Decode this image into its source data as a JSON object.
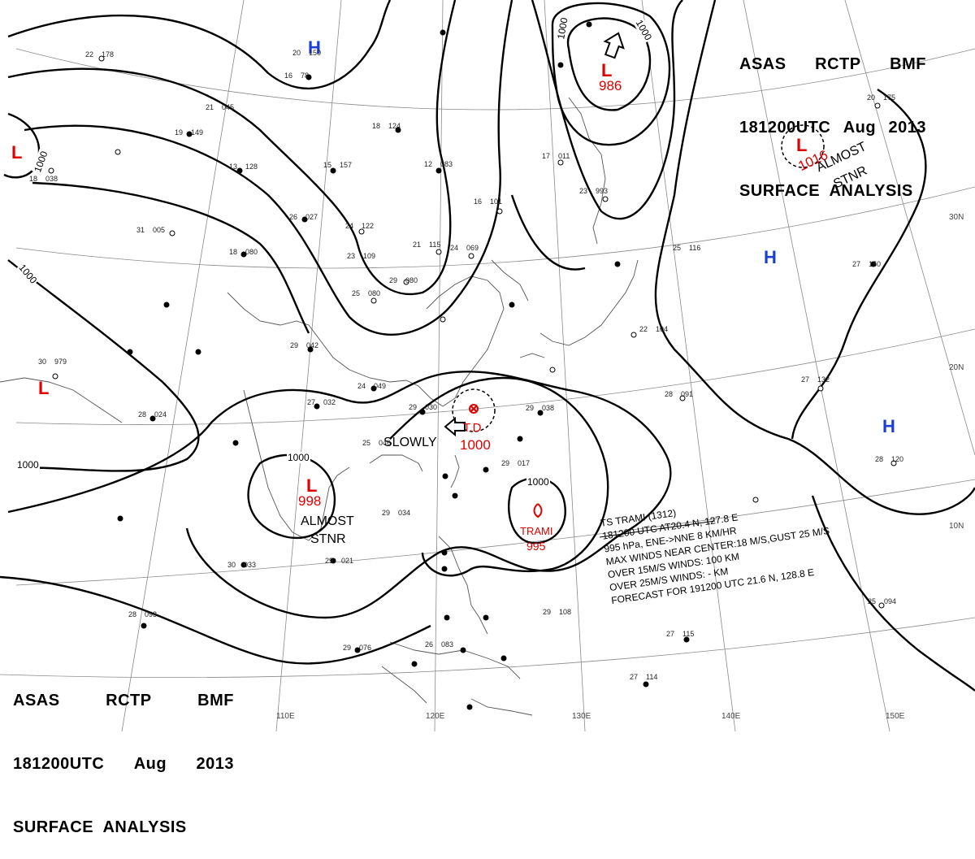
{
  "header": {
    "agency_line": [
      "ASAS",
      "RCTP",
      "BMF"
    ],
    "time_line": [
      "181200UTC",
      "Aug",
      "2013"
    ],
    "product": "SURFACE  ANALYSIS"
  },
  "lat_labels": [
    "30N",
    "20N",
    "10N"
  ],
  "lon_labels": [
    "110E",
    "120E",
    "130E",
    "140E",
    "150E"
  ],
  "isobar_label": "1000",
  "pressure_systems": {
    "low_ne": {
      "symbol": "L",
      "pressure": "986"
    },
    "low_e": {
      "symbol": "L",
      "pressure": "1016",
      "note1": "ALMOST",
      "note2": "STNR"
    },
    "low_w": {
      "symbol": "L"
    },
    "low_nw": {
      "symbol": "L"
    },
    "low_scs": {
      "symbol": "L",
      "pressure": "998",
      "note1": "ALMOST",
      "note2": "STNR"
    },
    "td": {
      "label": "T.D",
      "pressure": "1000",
      "motion": "SLOWLY"
    },
    "trami": {
      "name": "TRAMI",
      "pressure": "995"
    },
    "high_n": {
      "symbol": "H"
    },
    "high_e": {
      "symbol": "H"
    },
    "high_se": {
      "symbol": "H"
    }
  },
  "storm_info": {
    "line1": "TS  TRAMI  (1312)",
    "line2": "181200 UTC  AT20.4 N, 127.8 E",
    "line3": "995 hPa, ENE->NNE  8 KM/HR",
    "line4": "MAX WINDS NEAR CENTER:18 M/S,GUST 25 M/S",
    "line5": "OVER 15M/S WINDS: 100 KM",
    "line6": "OVER 25M/S WINDS: - KM",
    "line7": "FORECAST FOR 191200 UTC 21.6 N, 128.8 E"
  },
  "stations": [
    {
      "t": "22",
      "p": "178"
    },
    {
      "t": "20",
      "p": "150"
    },
    {
      "t": "16",
      "p": "78"
    },
    {
      "t": "19",
      "p": "149"
    },
    {
      "t": "13",
      "p": "128"
    },
    {
      "t": "15",
      "p": "157"
    },
    {
      "t": "18",
      "p": "124"
    },
    {
      "t": "12",
      "p": "083"
    },
    {
      "t": "16",
      "p": "101"
    },
    {
      "t": "21",
      "p": "045"
    },
    {
      "t": "24",
      "p": "122"
    },
    {
      "t": "26",
      "p": "027"
    },
    {
      "t": "18",
      "p": "080"
    },
    {
      "t": "23",
      "p": "109"
    },
    {
      "t": "21",
      "p": "115"
    },
    {
      "t": "24",
      "p": "069"
    },
    {
      "t": "29",
      "p": "080"
    },
    {
      "t": "25",
      "p": "080"
    },
    {
      "t": "29",
      "p": "042"
    },
    {
      "t": "24",
      "p": "049"
    },
    {
      "t": "27",
      "p": "032"
    },
    {
      "t": "29",
      "p": "030"
    },
    {
      "t": "25",
      "p": "046"
    },
    {
      "t": "29",
      "p": "017"
    },
    {
      "t": "29",
      "p": "038"
    },
    {
      "t": "29",
      "p": "034"
    },
    {
      "t": "29",
      "p": "021"
    },
    {
      "t": "30",
      "p": "033"
    },
    {
      "t": "28",
      "p": "093"
    },
    {
      "t": "29",
      "p": "076"
    },
    {
      "t": "26",
      "p": "083"
    },
    {
      "t": "29",
      "p": "108"
    },
    {
      "t": "27",
      "p": "115"
    },
    {
      "t": "27",
      "p": "114"
    },
    {
      "t": "25",
      "p": "094"
    },
    {
      "t": "28",
      "p": "091"
    },
    {
      "t": "27",
      "p": "132"
    },
    {
      "t": "28",
      "p": "120"
    },
    {
      "t": "27",
      "p": "150"
    },
    {
      "t": "25",
      "p": "116"
    },
    {
      "t": "22",
      "p": "104"
    },
    {
      "t": "23",
      "p": "993"
    },
    {
      "t": "17",
      "p": "011"
    },
    {
      "t": "20",
      "p": "175"
    },
    {
      "t": "30",
      "p": "979"
    },
    {
      "t": "28",
      "p": "024"
    },
    {
      "t": "31",
      "p": "005"
    },
    {
      "t": "18",
      "p": "038"
    }
  ]
}
